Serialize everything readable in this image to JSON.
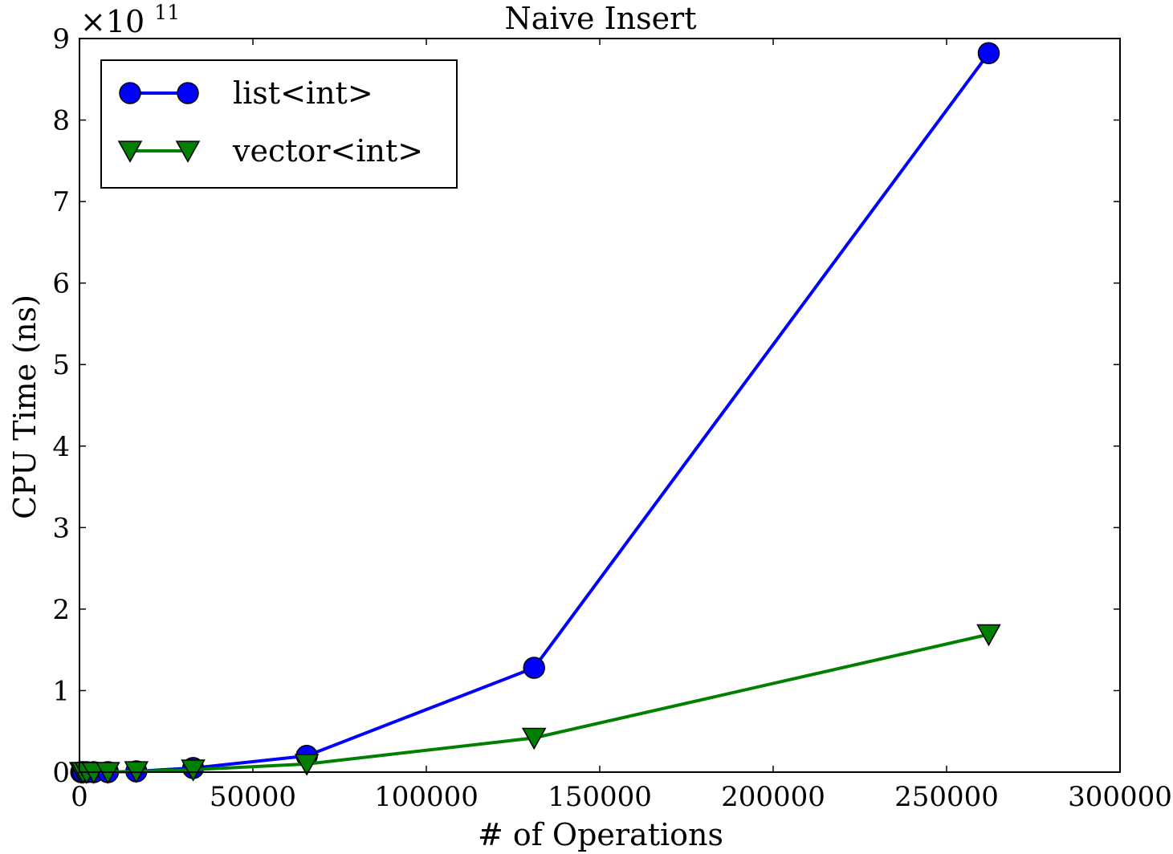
{
  "chart_data": {
    "type": "line",
    "title": "Naive Insert",
    "xlabel": "# of Operations",
    "ylabel": "CPU Time (ns)",
    "y_scale_label": "×10",
    "y_scale_exponent": "11",
    "xlim": [
      0,
      300000
    ],
    "ylim": [
      0,
      9
    ],
    "x_ticks": [
      0,
      50000,
      100000,
      150000,
      200000,
      250000,
      300000
    ],
    "x_tick_labels": [
      "0",
      "50000",
      "100000",
      "150000",
      "200000",
      "250000",
      "300000"
    ],
    "y_ticks": [
      0,
      1,
      2,
      3,
      4,
      5,
      6,
      7,
      8,
      9
    ],
    "y_tick_labels": [
      "0",
      "1",
      "2",
      "3",
      "4",
      "5",
      "6",
      "7",
      "8",
      "9"
    ],
    "grid": false,
    "legend_position": "top-left",
    "series": [
      {
        "name": "list<int>",
        "color": "#0000ff",
        "marker_color": "#0000ff",
        "marker": "circle",
        "x": [
          512,
          1024,
          2048,
          4096,
          8192,
          16384,
          32768,
          65536,
          131072,
          262144
        ],
        "y": [
          0.0,
          0.0,
          0.0,
          0.0,
          0.0,
          0.01,
          0.05,
          0.2,
          1.28,
          8.82
        ]
      },
      {
        "name": "vector<int>",
        "color": "#007f00",
        "marker_color": "#007f00",
        "marker": "triangle-down",
        "x": [
          512,
          1024,
          2048,
          4096,
          8192,
          16384,
          32768,
          65536,
          131072,
          262144
        ],
        "y": [
          0.0,
          0.0,
          0.0,
          0.0,
          0.0,
          0.01,
          0.03,
          0.1,
          0.42,
          1.69
        ]
      }
    ]
  }
}
